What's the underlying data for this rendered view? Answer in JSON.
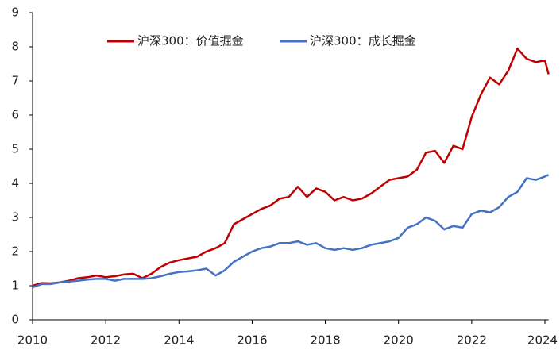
{
  "chart_data": {
    "type": "line",
    "x": [
      2010,
      2010.25,
      2010.5,
      2010.75,
      2011,
      2011.25,
      2011.5,
      2011.75,
      2012,
      2012.25,
      2012.5,
      2012.75,
      2013,
      2013.25,
      2013.5,
      2013.75,
      2014,
      2014.25,
      2014.5,
      2014.75,
      2015,
      2015.25,
      2015.5,
      2015.75,
      2016,
      2016.25,
      2016.5,
      2016.75,
      2017,
      2017.25,
      2017.5,
      2017.75,
      2018,
      2018.25,
      2018.5,
      2018.75,
      2019,
      2019.25,
      2019.5,
      2019.75,
      2020,
      2020.25,
      2020.5,
      2020.75,
      2021,
      2021.25,
      2021.5,
      2021.75,
      2022,
      2022.25,
      2022.5,
      2022.75,
      2023,
      2023.25,
      2023.5,
      2023.75,
      2024,
      2024.1
    ],
    "series": [
      {
        "name": "沪深300：价值掘金",
        "color": "#c00000",
        "values": [
          1.0,
          1.08,
          1.07,
          1.1,
          1.15,
          1.22,
          1.25,
          1.3,
          1.25,
          1.28,
          1.33,
          1.35,
          1.22,
          1.35,
          1.55,
          1.68,
          1.75,
          1.8,
          1.85,
          2.0,
          2.1,
          2.25,
          2.8,
          2.95,
          3.1,
          3.25,
          3.35,
          3.55,
          3.6,
          3.9,
          3.6,
          3.85,
          3.75,
          3.5,
          3.6,
          3.5,
          3.55,
          3.7,
          3.9,
          4.1,
          4.15,
          4.2,
          4.4,
          4.9,
          4.95,
          4.6,
          5.1,
          5.0,
          5.95,
          6.6,
          7.1,
          6.9,
          7.3,
          7.95,
          7.65,
          7.55,
          7.6,
          7.2
        ]
      },
      {
        "name": "沪深300：成长掘金",
        "color": "#4472c4",
        "values": [
          0.95,
          1.05,
          1.05,
          1.1,
          1.12,
          1.15,
          1.18,
          1.2,
          1.2,
          1.15,
          1.2,
          1.2,
          1.2,
          1.22,
          1.28,
          1.35,
          1.4,
          1.42,
          1.45,
          1.5,
          1.3,
          1.45,
          1.7,
          1.85,
          2.0,
          2.1,
          2.15,
          2.25,
          2.25,
          2.3,
          2.2,
          2.25,
          2.1,
          2.05,
          2.1,
          2.05,
          2.1,
          2.2,
          2.25,
          2.3,
          2.4,
          2.7,
          2.8,
          3.0,
          2.9,
          2.65,
          2.75,
          2.7,
          3.1,
          3.2,
          3.15,
          3.3,
          3.6,
          3.75,
          4.15,
          4.1,
          4.2,
          4.25
        ]
      }
    ],
    "xlim": [
      2010,
      2024.1
    ],
    "xticks": [
      2010,
      2012,
      2014,
      2016,
      2018,
      2020,
      2022,
      2024
    ],
    "ylim": [
      0,
      9
    ],
    "yticks": [
      0,
      1,
      2,
      3,
      4,
      5,
      6,
      7,
      8,
      9
    ],
    "legend": "top",
    "grid": false
  }
}
